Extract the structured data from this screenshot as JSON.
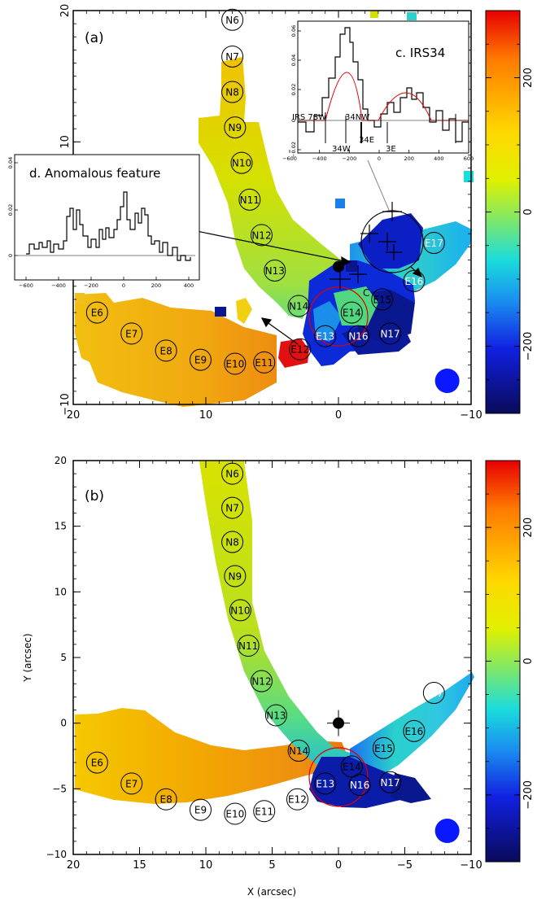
{
  "chart_data": [
    {
      "type": "heatmap",
      "panel_label": "(a)",
      "xlim": [
        20,
        -10
      ],
      "ylim": [
        -10,
        20
      ],
      "x_ticks": [
        "20",
        "10",
        "0",
        "−10"
      ],
      "y_ticks": [
        "20",
        "10",
        "−10"
      ],
      "xlabel": "",
      "ylabel": "",
      "grid": false,
      "colorbar": {
        "range": [
          -300,
          300
        ],
        "ticks": [
          "200",
          "0",
          "−200"
        ],
        "values": [
          200,
          0,
          -200
        ]
      },
      "center_marker": {
        "x": 0,
        "y": 0.5
      },
      "beam": {
        "x": -8.2,
        "y": -8.2,
        "color": "#0a18ff"
      },
      "clumps": [
        {
          "label": "N6",
          "x": 8,
          "y": 19.3
        },
        {
          "label": "N7",
          "x": 8,
          "y": 16.5
        },
        {
          "label": "N8",
          "x": 8,
          "y": 13.8
        },
        {
          "label": "N9",
          "x": 7.8,
          "y": 11.1
        },
        {
          "label": "N10",
          "x": 7.3,
          "y": 8.4
        },
        {
          "label": "N11",
          "x": 6.7,
          "y": 5.6
        },
        {
          "label": "N12",
          "x": 5.8,
          "y": 2.9
        },
        {
          "label": "N13",
          "x": 4.8,
          "y": 0.2
        },
        {
          "label": "N14",
          "x": 3,
          "y": -2.5
        },
        {
          "label": "E6",
          "x": 18.2,
          "y": -3
        },
        {
          "label": "E7",
          "x": 15.6,
          "y": -4.6
        },
        {
          "label": "E8",
          "x": 13,
          "y": -5.9
        },
        {
          "label": "E9",
          "x": 10.4,
          "y": -6.6
        },
        {
          "label": "E10",
          "x": 7.8,
          "y": -6.9
        },
        {
          "label": "E11",
          "x": 5.6,
          "y": -6.8
        },
        {
          "label": "E12",
          "x": 2.9,
          "y": -5.8
        },
        {
          "label": "E13",
          "x": 1,
          "y": -4.8
        },
        {
          "label": "E14",
          "x": -1,
          "y": -3
        },
        {
          "label": "E15",
          "x": -3.3,
          "y": -2
        },
        {
          "label": "E16",
          "x": -5.7,
          "y": -0.6
        },
        {
          "label": "E17",
          "x": -7.2,
          "y": 2.3
        },
        {
          "label": "N16",
          "x": -1.5,
          "y": -4.8
        },
        {
          "label": "N17",
          "x": -3.9,
          "y": -4.6
        }
      ],
      "insets": [
        {
          "title": "c. IRS34",
          "x_ticks": [
            "−600",
            "−400",
            "−200",
            "0",
            "200",
            "400",
            "600"
          ],
          "y_ticks": [
            "0.06",
            "0.04",
            "0.02",
            "0",
            "−0.02"
          ],
          "annotations": [
            "IRS 7SW",
            "34NW",
            "34E",
            "34W",
            "3E"
          ]
        },
        {
          "title": "d. Anomalous feature",
          "x_ticks": [
            "−600",
            "−400",
            "−200",
            "0",
            "200",
            "400"
          ],
          "y_ticks": [
            "0.04",
            "0.02",
            "0"
          ],
          "annotations": []
        }
      ],
      "blob_label": "C"
    },
    {
      "type": "heatmap",
      "panel_label": "(b)",
      "xlim": [
        20,
        -10
      ],
      "ylim": [
        -10,
        20
      ],
      "x_ticks": [
        "20",
        "15",
        "10",
        "5",
        "0",
        "−5",
        "−10"
      ],
      "y_ticks": [
        "20",
        "15",
        "10",
        "5",
        "0",
        "−5",
        "−10"
      ],
      "xlabel": "X (arcsec)",
      "ylabel": "Y (arcsec)",
      "grid": false,
      "colorbar": {
        "range": [
          -300,
          300
        ],
        "ticks": [
          "200",
          "0",
          "−200"
        ],
        "values": [
          200,
          0,
          -200
        ]
      },
      "center_marker": {
        "x": 0,
        "y": 0
      },
      "beam": {
        "x": -8.2,
        "y": -8.2,
        "color": "#0a18ff"
      },
      "clumps": [
        {
          "label": "N6",
          "x": 8,
          "y": 19
        },
        {
          "label": "N7",
          "x": 8,
          "y": 16.4
        },
        {
          "label": "N8",
          "x": 8,
          "y": 13.8
        },
        {
          "label": "N9",
          "x": 7.8,
          "y": 11.2
        },
        {
          "label": "N10",
          "x": 7.4,
          "y": 8.6
        },
        {
          "label": "N11",
          "x": 6.8,
          "y": 5.9
        },
        {
          "label": "N12",
          "x": 5.8,
          "y": 3.2
        },
        {
          "label": "N13",
          "x": 4.7,
          "y": 0.6
        },
        {
          "label": "N14",
          "x": 3,
          "y": -2.1
        },
        {
          "label": "E6",
          "x": 18.2,
          "y": -3
        },
        {
          "label": "E7",
          "x": 15.6,
          "y": -4.6
        },
        {
          "label": "E8",
          "x": 13,
          "y": -5.8
        },
        {
          "label": "E9",
          "x": 10.4,
          "y": -6.6
        },
        {
          "label": "E10",
          "x": 7.8,
          "y": -6.9
        },
        {
          "label": "E11",
          "x": 5.6,
          "y": -6.7
        },
        {
          "label": "E12",
          "x": 3.1,
          "y": -5.8
        },
        {
          "label": "E13",
          "x": 1,
          "y": -4.6
        },
        {
          "label": "E14",
          "x": -1,
          "y": -3.3
        },
        {
          "label": "E15",
          "x": -3.4,
          "y": -1.9
        },
        {
          "label": "E16",
          "x": -5.7,
          "y": -0.6
        },
        {
          "label": "E17",
          "x": -7.2,
          "y": 2.3
        },
        {
          "label": "N16",
          "x": -1.6,
          "y": -4.7
        },
        {
          "label": "N17",
          "x": -3.9,
          "y": -4.5
        }
      ]
    }
  ]
}
